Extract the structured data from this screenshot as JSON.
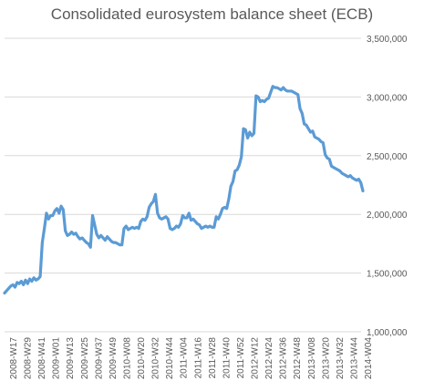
{
  "chart_data": {
    "type": "line",
    "title": "Consolidated eurosystem balance sheet (ECB)",
    "xlabel": "",
    "ylabel": "",
    "ylim": [
      1000000,
      3500000
    ],
    "yticks": [
      1000000,
      1500000,
      2000000,
      2500000,
      3000000,
      3500000
    ],
    "ytick_labels": [
      "1,000,000",
      "1,500,000",
      "2,000,000",
      "2,500,000",
      "3,000,000",
      "3,500,000"
    ],
    "y_axis_position": "right",
    "grid": true,
    "legend": "none",
    "line_color": "#5b9bd5",
    "xtick_labels": [
      "2008-W17",
      "2008-W29",
      "2008-W41",
      "2009-W01",
      "2009-W13",
      "2009-W25",
      "2009-W37",
      "2009-W49",
      "2010-W08",
      "2010-W20",
      "2010-W32",
      "2010-W44",
      "2011-W04",
      "2011-W16",
      "2011-W28",
      "2011-W40",
      "2011-W52",
      "2012-W12",
      "2012-W24",
      "2012-W36",
      "2012-W48",
      "2013-W08",
      "2013-W20",
      "2013-W32",
      "2013-W44",
      "2014-W04"
    ],
    "series": [
      {
        "values": [
          1330000,
          1350000,
          1370000,
          1390000,
          1400000,
          1380000,
          1420000,
          1410000,
          1430000,
          1400000,
          1440000,
          1410000,
          1450000,
          1430000,
          1460000,
          1440000,
          1450000,
          1470000,
          1760000,
          1880000,
          2010000,
          1960000,
          1990000,
          1990000,
          2030000,
          2050000,
          2010000,
          2070000,
          2040000,
          1860000,
          1820000,
          1830000,
          1850000,
          1830000,
          1840000,
          1810000,
          1790000,
          1800000,
          1780000,
          1760000,
          1750000,
          1720000,
          1990000,
          1910000,
          1830000,
          1800000,
          1820000,
          1800000,
          1780000,
          1810000,
          1790000,
          1770000,
          1760000,
          1760000,
          1750000,
          1740000,
          1740000,
          1880000,
          1900000,
          1870000,
          1880000,
          1890000,
          1880000,
          1890000,
          1880000,
          1940000,
          1960000,
          1950000,
          1980000,
          2060000,
          2090000,
          2110000,
          2170000,
          2010000,
          1970000,
          1960000,
          1970000,
          1980000,
          1960000,
          1880000,
          1870000,
          1880000,
          1900000,
          1890000,
          1920000,
          1990000,
          1970000,
          1970000,
          2010000,
          1950000,
          1960000,
          1940000,
          1920000,
          1910000,
          1880000,
          1890000,
          1900000,
          1890000,
          1900000,
          1890000,
          1890000,
          1980000,
          1960000,
          2000000,
          2050000,
          2060000,
          2050000,
          2130000,
          2240000,
          2280000,
          2370000,
          2380000,
          2420000,
          2490000,
          2730000,
          2720000,
          2650000,
          2700000,
          2670000,
          2690000,
          3010000,
          3000000,
          2960000,
          2970000,
          2960000,
          2980000,
          2990000,
          3040000,
          3090000,
          3080000,
          3080000,
          3070000,
          3060000,
          3080000,
          3060000,
          3050000,
          3050000,
          3050000,
          3040000,
          3030000,
          3020000,
          2900000,
          2860000,
          2770000,
          2760000,
          2730000,
          2700000,
          2710000,
          2660000,
          2650000,
          2640000,
          2620000,
          2610000,
          2510000,
          2480000,
          2470000,
          2410000,
          2400000,
          2390000,
          2380000,
          2370000,
          2350000,
          2340000,
          2330000,
          2320000,
          2330000,
          2310000,
          2300000,
          2290000,
          2300000,
          2270000,
          2200000
        ]
      }
    ]
  }
}
